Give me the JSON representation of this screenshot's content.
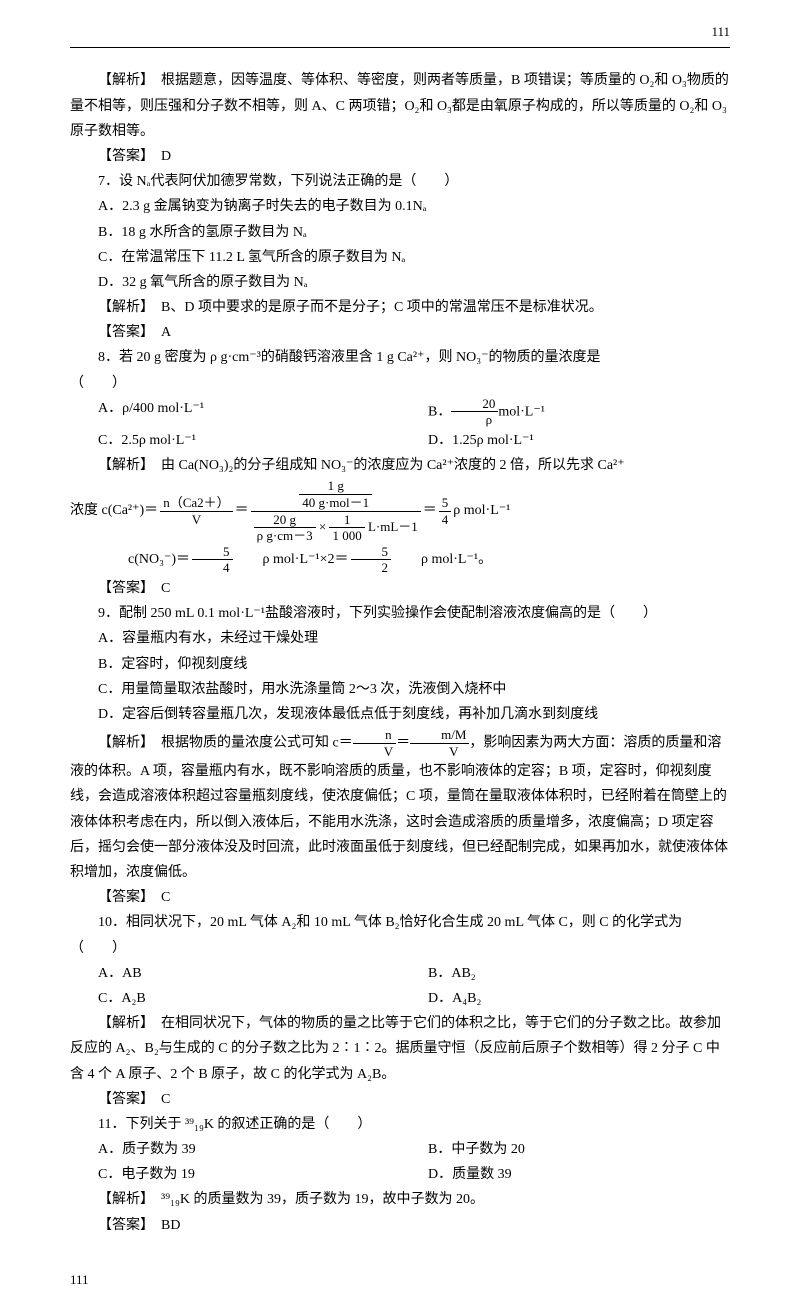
{
  "page_number": "111",
  "q6": {
    "analysis_label": "【解析】",
    "analysis": "根据题意，因等温度、等体积、等密度，则两者等质量，B 项错误；等质量的 O₂和 O₃物质的量不相等，则压强和分子数不相等，则 A、C 两项错；O₂和 O₃都是由氧原子构成的，所以等质量的 O₂和 O₃原子数相等。",
    "answer_label": "【答案】",
    "answer": "D"
  },
  "q7": {
    "stem": "7．设 Nₐ代表阿伏加德罗常数，下列说法正确的是（　　）",
    "a": "A．2.3 g 金属钠变为钠离子时失去的电子数目为 0.1Nₐ",
    "b": "B．18 g 水所含的氢原子数目为 Nₐ",
    "c": "C．在常温常压下 11.2 L 氢气所含的原子数目为 Nₐ",
    "d": "D．32 g 氧气所含的原子数目为 Nₐ",
    "analysis_label": "【解析】",
    "analysis": "B、D 项中要求的是原子而不是分子；C 项中的常温常压不是标准状况。",
    "answer_label": "【答案】",
    "answer": "A"
  },
  "q8": {
    "stem_1": "8．若 20 g 密度为 ρ g·cm⁻³的硝酸钙溶液里含 1 g Ca²⁺，则 NO₃⁻的物质的量浓度是",
    "stem_2": "（　　）",
    "a_pre": "A．ρ/400 mol·L⁻¹",
    "b_pre": "B．",
    "b_num": "20",
    "b_den": "ρ",
    "b_post": "mol·L⁻¹",
    "c": "C．2.5ρ mol·L⁻¹",
    "d": "D．1.25ρ mol·L⁻¹",
    "analysis_label": "【解析】",
    "analysis_1": "由 Ca(NO₃)₂的分子组成知 NO₃⁻的浓度应为 Ca²⁺浓度的 2 倍，所以先求 Ca²⁺",
    "eq_lhs": "浓度 c(Ca²⁺)＝",
    "f1n": "n（Ca2＋）",
    "f1d": "V",
    "eq_eq": "＝",
    "f2an": "1 g",
    "f2ad": "40 g·mol－1",
    "f2bn": "20 g",
    "f2bd": "ρ g·cm－3",
    "times": "×",
    "f2cn": "1",
    "f2cd": "1 000",
    "f2c_post": "L·mL－1",
    "eq_eq2": "＝",
    "f3n": "5",
    "f3d": "4",
    "eq_post": "ρ mol·L⁻¹",
    "line2_pre": "c(NO₃⁻)＝",
    "line2_n": "5",
    "line2_d": "4",
    "line2_mid": "ρ mol·L⁻¹×2＝",
    "line2_n2": "5",
    "line2_d2": "2",
    "line2_post": "ρ mol·L⁻¹。",
    "answer_label": "【答案】",
    "answer": "C"
  },
  "q9": {
    "stem": "9．配制 250 mL 0.1 mol·L⁻¹盐酸溶液时，下列实验操作会使配制溶液浓度偏高的是（　　）",
    "a": "A．容量瓶内有水，未经过干燥处理",
    "b": "B．定容时，仰视刻度线",
    "c": "C．用量筒量取浓盐酸时，用水洗涤量筒 2～3 次，洗液倒入烧杯中",
    "d": "D．定容后倒转容量瓶几次，发现液体最低点低于刻度线，再补加几滴水到刻度线",
    "analysis_label": "【解析】",
    "analysis_pre": "根据物质的量浓度公式可知 c＝",
    "fa_n": "n",
    "fa_d": "V",
    "analysis_mid": "＝",
    "fb_n": "m/M",
    "fb_d": "V",
    "analysis_post": "，影响因素为两大方面：溶质的质量和溶液的体积。A 项，容量瓶内有水，既不影响溶质的质量，也不影响液体的定容；B 项，定容时，仰视刻度线，会造成溶液体积超过容量瓶刻度线，使浓度偏低；C 项，量筒在量取液体体积时，已经附着在筒壁上的液体体积考虑在内，所以倒入液体后，不能用水洗涤，这时会造成溶质的质量增多，浓度偏高；D 项定容后，摇匀会使一部分液体没及时回流，此时液面虽低于刻度线，但已经配制完成，如果再加水，就使液体体积增加，浓度偏低。",
    "answer_label": "【答案】",
    "answer": "C"
  },
  "q10": {
    "stem": "10．相同状况下，20 mL 气体 A₂和 10 mL 气体 B₂恰好化合生成 20 mL 气体 C，则 C 的化学式为（　　）",
    "a": "A．AB",
    "b": "B．AB₂",
    "c": "C．A₂B",
    "d": "D．A₄B₂",
    "analysis_label": "【解析】",
    "analysis": "在相同状况下，气体的物质的量之比等于它们的体积之比，等于它们的分子数之比。故参加反应的 A₂、B₂与生成的 C 的分子数之比为 2∶1∶2。据质量守恒（反应前后原子个数相等）得 2 分子 C 中含 4 个 A 原子、2 个 B 原子，故 C 的化学式为 A₂B。",
    "answer_label": "【答案】",
    "answer": "C"
  },
  "q11": {
    "stem": "11．下列关于 ³⁹₁₉K 的叙述正确的是（　　）",
    "a": "A．质子数为 39",
    "b": "B．中子数为 20",
    "c": "C．电子数为 19",
    "d": "D．质量数 39",
    "analysis_label": "【解析】",
    "analysis": "³⁹₁₉K 的质量数为 39，质子数为 19，故中子数为 20。",
    "answer_label": "【答案】",
    "answer": "BD"
  }
}
